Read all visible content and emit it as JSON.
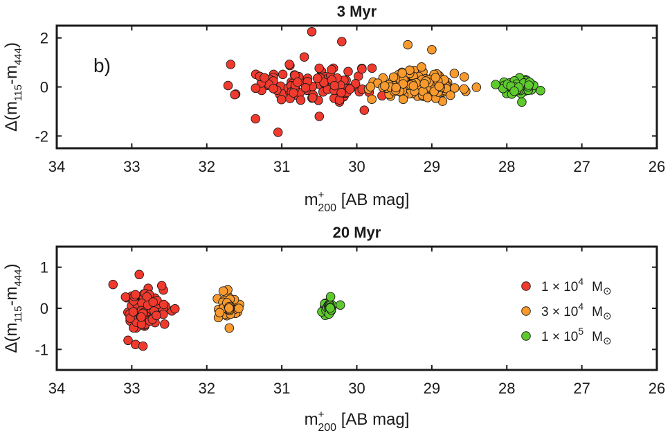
{
  "chart_data": [
    {
      "type": "scatter",
      "title": "3 Myr",
      "panel_label": "b)",
      "xlabel": {
        "main": "m",
        "sup": "+",
        "sub": "200",
        "rest": "  [AB  mag]"
      },
      "ylabel": {
        "main": "Δ(m",
        "sub1": "115",
        "mid": "-m",
        "sub2": "444",
        "end": ")"
      },
      "xlim": [
        34,
        26
      ],
      "ylim": [
        -2.5,
        2.5
      ],
      "xticks": [
        34,
        33,
        32,
        31,
        30,
        29,
        28,
        27,
        26
      ],
      "xtick_labels": [
        "34",
        "33",
        "32",
        "31",
        "30",
        "29",
        "28",
        "27",
        "26"
      ],
      "yticks": [
        -2,
        0,
        2
      ],
      "ytick_labels": [
        "-2",
        "0",
        "2"
      ],
      "series": [
        {
          "name": "1 × 10^4 M⊙",
          "color": "#f03a2e",
          "center": [
            30.6,
            0.1
          ],
          "spread": [
            0.85,
            0.75
          ],
          "n": 110,
          "seed": 11,
          "extra": [
            [
              30.6,
              2.25
            ],
            [
              31.05,
              -1.85
            ],
            [
              31.35,
              -1.3
            ],
            [
              30.5,
              -1.2
            ],
            [
              29.9,
              -0.95
            ],
            [
              31.35,
              -0.05
            ],
            [
              30.2,
              1.85
            ]
          ]
        },
        {
          "name": "3 × 10^4 M⊙",
          "color": "#f89a2e",
          "center": [
            29.15,
            0.05
          ],
          "spread": [
            0.5,
            0.45
          ],
          "n": 120,
          "seed": 23,
          "extra": [
            [
              29.32,
              1.72
            ],
            [
              29.0,
              1.52
            ],
            [
              28.7,
              0.55
            ],
            [
              29.8,
              -0.5
            ]
          ]
        },
        {
          "name": "1 × 10^5 M⊙",
          "color": "#5ecb2c",
          "center": [
            27.85,
            0.0
          ],
          "spread": [
            0.16,
            0.28
          ],
          "n": 60,
          "seed": 37,
          "extra": [
            [
              27.55,
              -0.15
            ],
            [
              28.15,
              0.1
            ],
            [
              27.8,
              -0.62
            ]
          ]
        }
      ]
    },
    {
      "type": "scatter",
      "title": "20 Myr",
      "xlabel": {
        "main": "m",
        "sup": "+",
        "sub": "200",
        "rest": "  [AB  mag]"
      },
      "ylabel": {
        "main": "Δ(m",
        "sub1": "115",
        "mid": "-m",
        "sub2": "444",
        "end": ")"
      },
      "xlim": [
        34,
        26
      ],
      "ylim": [
        -1.5,
        1.5
      ],
      "xticks": [
        34,
        33,
        32,
        31,
        30,
        29,
        28,
        27,
        26
      ],
      "xtick_labels": [
        "34",
        "33",
        "32",
        "31",
        "30",
        "29",
        "28",
        "27",
        "26"
      ],
      "yticks": [
        -1,
        0,
        1
      ],
      "ytick_labels": [
        "-1",
        "0",
        "1"
      ],
      "legend": {
        "position": "right",
        "entries": [
          {
            "coef": "1 × 10",
            "exp": "4",
            "unit": "M",
            "sub": "⊙",
            "color": "#f03a2e"
          },
          {
            "coef": "3 × 10",
            "exp": "4",
            "unit": "M",
            "sub": "⊙",
            "color": "#f89a2e"
          },
          {
            "coef": "1 × 10",
            "exp": "5",
            "unit": "M",
            "sub": "⊙",
            "color": "#5ecb2c"
          }
        ]
      },
      "series": [
        {
          "name": "1 × 10^4 M⊙",
          "color": "#f03a2e",
          "center": [
            32.85,
            0.0
          ],
          "spread": [
            0.24,
            0.38
          ],
          "n": 100,
          "seed": 5,
          "extra": [
            [
              33.05,
              -0.78
            ],
            [
              32.95,
              -0.88
            ],
            [
              32.85,
              -0.92
            ],
            [
              33.25,
              0.58
            ],
            [
              32.6,
              0.55
            ],
            [
              32.9,
              0.82
            ]
          ]
        },
        {
          "name": "3 × 10^4 M⊙",
          "color": "#f89a2e",
          "center": [
            31.7,
            0.0
          ],
          "spread": [
            0.11,
            0.2
          ],
          "n": 60,
          "seed": 17,
          "extra": [
            [
              31.7,
              -0.48
            ],
            [
              31.72,
              0.45
            ],
            [
              31.78,
              0.42
            ]
          ]
        },
        {
          "name": "1 × 10^5 M⊙",
          "color": "#5ecb2c",
          "center": [
            30.38,
            0.0
          ],
          "spread": [
            0.07,
            0.12
          ],
          "n": 45,
          "seed": 29,
          "extra": [
            [
              30.22,
              0.08
            ],
            [
              30.35,
              0.28
            ]
          ]
        }
      ]
    }
  ]
}
